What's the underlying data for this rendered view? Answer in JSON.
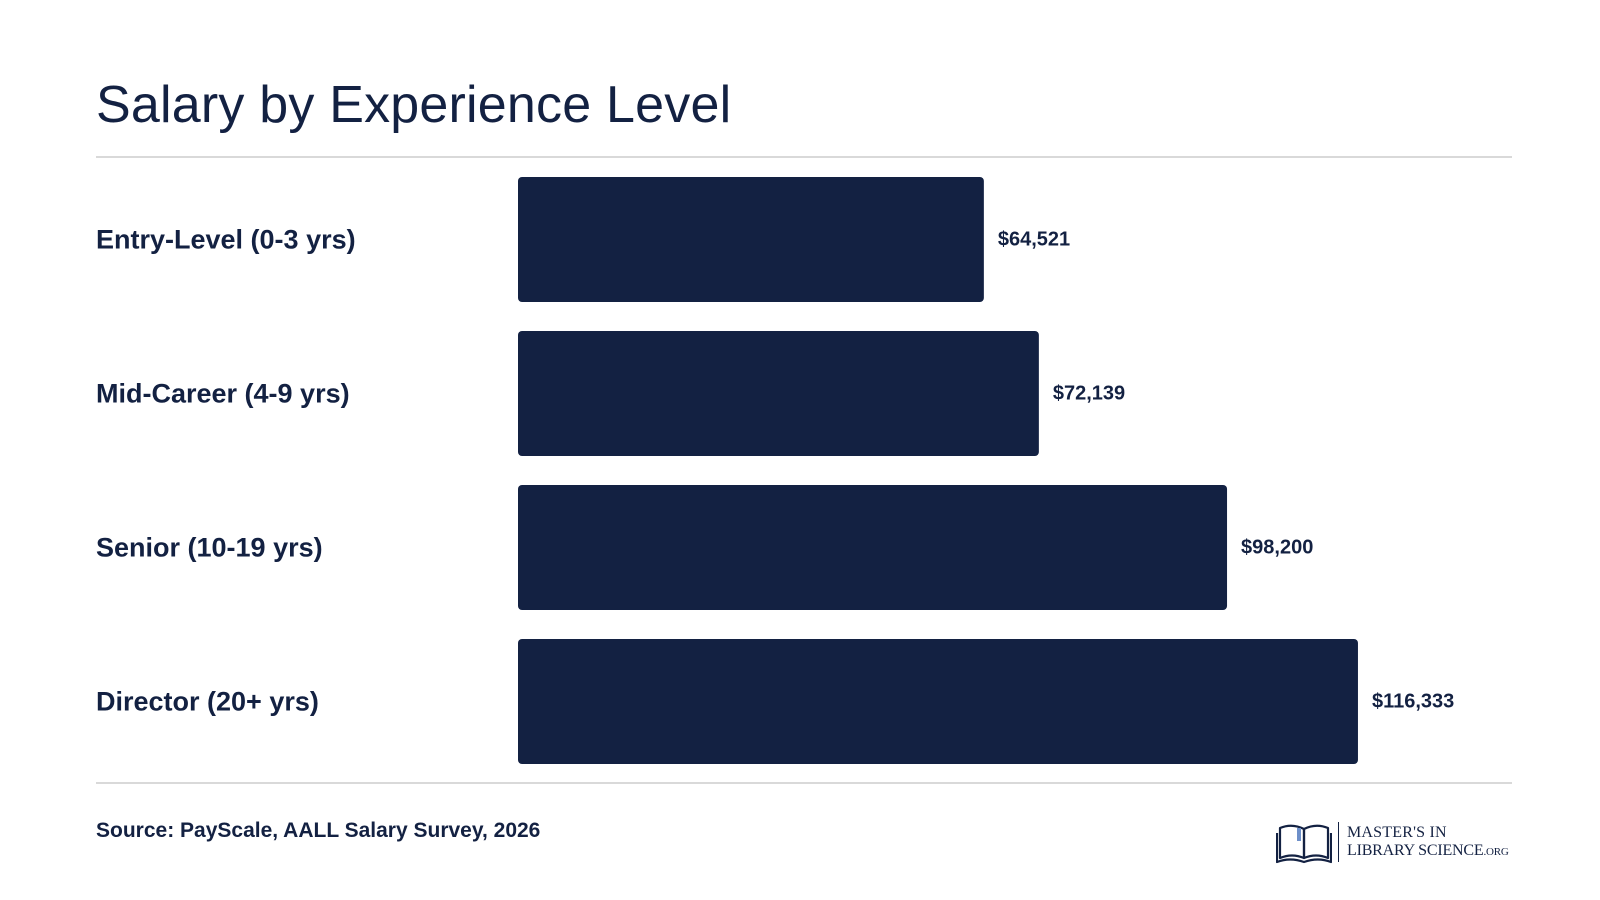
{
  "title": "Salary by Experience Level",
  "source": "Source: PayScale, AALL Salary Survey, 2026",
  "logo": {
    "line1": "MASTER'S IN",
    "line2": "LIBRARY SCIENCE",
    "suffix": ".ORG",
    "icon": "open-book-icon"
  },
  "colors": {
    "bar": "#132142",
    "text": "#132142",
    "rule": "#d9d9d9"
  },
  "chart_data": {
    "type": "bar",
    "orientation": "horizontal",
    "title": "Salary by Experience Level",
    "categories": [
      "Entry-Level (0-3 yrs)",
      "Mid-Career (4-9 yrs)",
      "Senior (10-19 yrs)",
      "Director (20+ yrs)"
    ],
    "values": [
      64521,
      72139,
      98200,
      116333
    ],
    "value_labels": [
      "$64,521",
      "$72,139",
      "$98,200",
      "$116,333"
    ],
    "xlim": [
      0,
      118000
    ],
    "xlabel": "",
    "ylabel": "",
    "grid": false,
    "legend": "none"
  }
}
